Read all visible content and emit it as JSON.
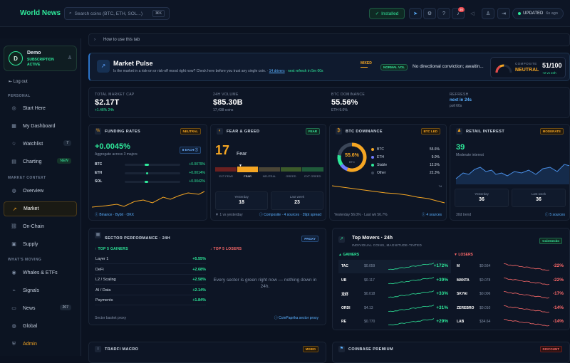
{
  "app": {
    "title": "World News"
  },
  "topbar": {
    "search_placeholder": "Search coins (BTC, ETH, SOL...)",
    "search_kbd": "⌘K",
    "installed_label": "Installed",
    "notif_count": "30",
    "updated_label": "UPDATED",
    "updated_ago": "6s ago"
  },
  "profile": {
    "initial": "D",
    "name": "Demo",
    "subscription": "SUBSCRIPTION ACTIVE"
  },
  "sidebar": {
    "logout": "Log out",
    "section_personal": "PERSONAL",
    "section_market": "MARKET CONTEXT",
    "section_moving": "WHAT'S MOVING",
    "personal": [
      {
        "label": "Start Here",
        "icon": "compass-icon"
      },
      {
        "label": "My Dashboard",
        "icon": "grid-icon"
      },
      {
        "label": "Watchlist",
        "icon": "star-icon",
        "count": "7"
      },
      {
        "label": "Charting",
        "icon": "chart-icon",
        "count": "NEW"
      }
    ],
    "market": [
      {
        "label": "Overview",
        "icon": "globe-icon"
      },
      {
        "label": "Market",
        "icon": "trend-icon",
        "active": true
      },
      {
        "label": "On-Chain",
        "icon": "link-icon"
      },
      {
        "label": "Supply",
        "icon": "box-icon"
      }
    ],
    "moving": [
      {
        "label": "Whales & ETFs",
        "icon": "whale-icon"
      },
      {
        "label": "Signals",
        "icon": "signal-icon"
      },
      {
        "label": "News",
        "icon": "news-icon",
        "count": "207"
      },
      {
        "label": "Global",
        "icon": "globe-icon"
      },
      {
        "label": "Admin",
        "icon": "shield-icon"
      }
    ]
  },
  "help": {
    "label": "How to use this tab"
  },
  "pulse": {
    "title": "Market Pulse",
    "desc": "Is the market in a risk-on or risk-off mood right now? Check here before you trust any single coin.",
    "drivers": "14 drivers",
    "refresh": "· next refresh in 5m 00s",
    "mixed": "MIXED",
    "normal_vol": "NORMAL VOL",
    "conviction": "No directional conviction; awaitin...",
    "composite_label": "COMPOSITE",
    "composite_state": "NEUTRAL",
    "composite_score": "51/100",
    "composite_delta": "+2 vs 24h",
    "gauge_fraction": 0.51
  },
  "stats": [
    {
      "label": "TOTAL MARKET CAP",
      "value": "$2.17T",
      "sub": "+1.46% 24h",
      "positive": true
    },
    {
      "label": "24H VOLUME",
      "value": "$85.30B",
      "sub": "17,438 coins"
    },
    {
      "label": "BTC DOMINANCE",
      "value": "55.56%",
      "sub": "ETH 9.0%"
    },
    {
      "label": "REFRESH",
      "value": "next in 24s",
      "sub": "poll 60s"
    }
  ],
  "funding": {
    "title": "FUNDING RATES",
    "tag": "NEUTRAL",
    "value": "+0.0045%",
    "sub": "Aggregate across 3 majors",
    "each": "8 EACH",
    "rows": [
      {
        "name": "BTC",
        "value": "+0.0079%"
      },
      {
        "name": "ETH",
        "value": "+0.0014%"
      },
      {
        "name": "SOL",
        "value": "+0.0042%"
      }
    ],
    "footer": "Binance · Bybit · OKX"
  },
  "fear": {
    "title": "FEAR & GREED",
    "tag": "FEAR",
    "value": "17",
    "label": "Fear",
    "scale": [
      "EXT FEAR",
      "FEAR",
      "NEUTRAL",
      "GREED",
      "EXT GREED"
    ],
    "yesterday_label": "Yesterday",
    "yesterday": "18",
    "lastweek_label": "Last week",
    "lastweek": "23",
    "footer": "▼ 1 vs yesterday"
  },
  "btcdom": {
    "title": "BTC DOMINANCE",
    "tag": "BTC LED",
    "center_value": "55.6%",
    "center_label": "BTC",
    "slices": [
      {
        "name": "BTC",
        "value": 55.6,
        "label": "55.6%",
        "color": "#f5a623"
      },
      {
        "name": "ETH",
        "value": 9.0,
        "label": "9.0%",
        "color": "#6f7dff"
      },
      {
        "name": "Stable",
        "value": 12.5,
        "label": "12.5%",
        "color": "#2ee89a"
      },
      {
        "name": "Other",
        "value": 22.3,
        "label": "22.3%",
        "color": "#3b4658"
      }
    ],
    "footer": "Yesterday 56.0% · Last wk 56.7%",
    "footer_link": "4 sources"
  },
  "retail": {
    "title": "RETAIL INTEREST",
    "tag": "MODERATE",
    "value": "39",
    "sub": "Moderate interest",
    "yesterday_label": "Yesterday",
    "yesterday": "36",
    "lastweek_label": "Last week",
    "lastweek": "36",
    "footer": "30d trend",
    "footer_link": "5 sources"
  },
  "sector": {
    "title": "SECTOR PERFORMANCE · 24H",
    "tag": "PROXY",
    "gainers_label": "↑ TOP 5 GAINERS",
    "losers_label": "↓ TOP 5 LOSERS",
    "gainers": [
      {
        "name": "Layer 1",
        "value": "+5.55%"
      },
      {
        "name": "DeFi",
        "value": "+2.68%"
      },
      {
        "name": "L2 / Scaling",
        "value": "+2.58%"
      },
      {
        "name": "AI / Data",
        "value": "+2.14%"
      },
      {
        "name": "Payments",
        "value": "+1.84%"
      }
    ],
    "losers_empty": "Every sector is green right now — nothing down in 24h.",
    "footer": "Sector basket proxy",
    "footer_link": "CoinPaprika sector proxy"
  },
  "movers": {
    "title": "Top Movers · 24h",
    "sub": "INDIVIDUAL COINS, MAGNITUDE-TINTED",
    "tag": "CoinGecko",
    "gainers_label": "▲ GAINERS",
    "losers_label": "▼ LOSERS",
    "gainers": [
      {
        "ticker": "TAC",
        "price": "$0.059",
        "change": "+172%"
      },
      {
        "ticker": "UB",
        "price": "$0.117",
        "change": "+39%"
      },
      {
        "ticker": "龙虾",
        "price": "$0.018",
        "change": "+33%"
      },
      {
        "ticker": "ORDI",
        "price": "$4.13",
        "change": "+31%"
      },
      {
        "ticker": "RE",
        "price": "$0.770",
        "change": "+29%"
      }
    ],
    "losers": [
      {
        "ticker": "M",
        "price": "$0.564",
        "change": "-22%"
      },
      {
        "ticker": "MANTA",
        "price": "$0.078",
        "change": "-22%"
      },
      {
        "ticker": "SKYAI",
        "price": "$0.006",
        "change": "-17%"
      },
      {
        "ticker": "ZEREBRO",
        "price": "$0.010",
        "change": "-14%"
      },
      {
        "ticker": "LAB",
        "price": "$34.64",
        "change": "-14%"
      }
    ]
  },
  "tradfi": {
    "title": "TRADFI MACRO",
    "tag": "MIXED"
  },
  "coinbase": {
    "title": "COINBASE PREMIUM",
    "tag": "DISCOUNT"
  }
}
